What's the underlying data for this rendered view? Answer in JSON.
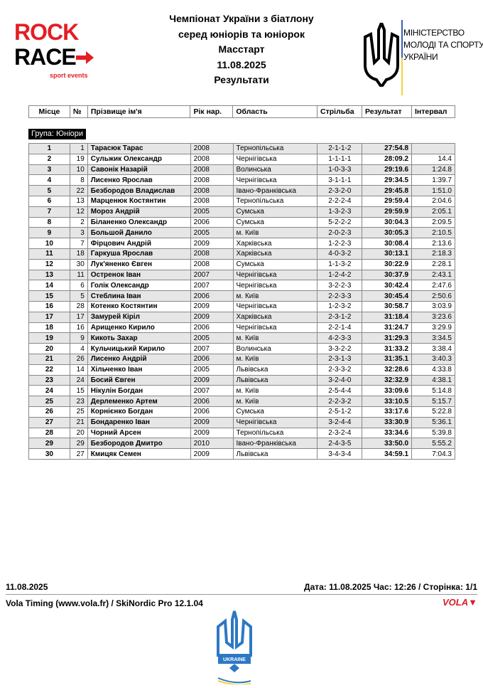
{
  "header": {
    "rock_race_logo": {
      "line1": "ROCK",
      "line2": "RACE",
      "tagline": "sport events"
    },
    "title_lines": [
      "Чемпіонат України з біатлону",
      "серед юніорів та юніорок",
      "Масстарт",
      "11.08.2025",
      "Результати"
    ],
    "ministry_logo": {
      "line1": "МІНІСТЕРСТВО",
      "line2": "МОЛОДІ ТА СПОРТУ",
      "line3": "УКРАЇНИ"
    }
  },
  "table": {
    "columns": [
      "Місце",
      "№",
      "Прізвище ім'я",
      "Рік нар.",
      "Область",
      "Стрільба",
      "Результат",
      "Інтервал"
    ],
    "group_label": "Група: Юніори",
    "rows": [
      [
        "1",
        "1",
        "Тарасюк Тарас",
        "2008",
        "Тернопільська",
        "2-1-1-2",
        "27:54.8",
        ""
      ],
      [
        "2",
        "19",
        "Сульжик Олександр",
        "2008",
        "Чернігівська",
        "1-1-1-1",
        "28:09.2",
        "14.4"
      ],
      [
        "3",
        "10",
        "Савонік Назарій",
        "2008",
        "Волинська",
        "1-0-3-3",
        "29:19.6",
        "1:24.8"
      ],
      [
        "4",
        "8",
        "Лисенко Ярослав",
        "2008",
        "Чернігівська",
        "3-1-1-1",
        "29:34.5",
        "1:39.7"
      ],
      [
        "5",
        "22",
        "Безбородов Владислав",
        "2008",
        "Івано-Франківська",
        "2-3-2-0",
        "29:45.8",
        "1:51.0"
      ],
      [
        "6",
        "13",
        "Марценюк Костянтин",
        "2008",
        "Тернопільська",
        "2-2-2-4",
        "29:59.4",
        "2:04.6"
      ],
      [
        "7",
        "12",
        "Мороз Андрій",
        "2005",
        "Сумська",
        "1-3-2-3",
        "29:59.9",
        "2:05.1"
      ],
      [
        "8",
        "2",
        "Біланенко Олександр",
        "2006",
        "Сумська",
        "5-2-2-2",
        "30:04.3",
        "2:09.5"
      ],
      [
        "9",
        "3",
        "Большой Данило",
        "2005",
        "м. Київ",
        "2-0-2-3",
        "30:05.3",
        "2:10.5"
      ],
      [
        "10",
        "7",
        "Фірцович Андрій",
        "2009",
        "Харківська",
        "1-2-2-3",
        "30:08.4",
        "2:13.6"
      ],
      [
        "11",
        "18",
        "Гаркуша Ярослав",
        "2008",
        "Харківська",
        "4-0-3-2",
        "30:13.1",
        "2:18.3"
      ],
      [
        "12",
        "30",
        "Лук'яненко Євген",
        "2008",
        "Сумська",
        "1-1-3-2",
        "30:22.9",
        "2:28.1"
      ],
      [
        "13",
        "11",
        "Остренок Іван",
        "2007",
        "Чернігівська",
        "1-2-4-2",
        "30:37.9",
        "2:43.1"
      ],
      [
        "14",
        "6",
        "Голік Олександр",
        "2007",
        "Чернігівська",
        "3-2-2-3",
        "30:42.4",
        "2:47.6"
      ],
      [
        "15",
        "5",
        "Стеблина Іван",
        "2006",
        "м. Київ",
        "2-2-3-3",
        "30:45.4",
        "2:50.6"
      ],
      [
        "16",
        "28",
        "Котенко Костянтин",
        "2009",
        "Чернігівська",
        "1-2-3-2",
        "30:58.7",
        "3:03.9"
      ],
      [
        "17",
        "17",
        "Замурей Кіріл",
        "2009",
        "Харківська",
        "2-3-1-2",
        "31:18.4",
        "3:23.6"
      ],
      [
        "18",
        "16",
        "Арищенко Кирило",
        "2006",
        "Чернігівська",
        "2-2-1-4",
        "31:24.7",
        "3:29.9"
      ],
      [
        "19",
        "9",
        "Кикоть Захар",
        "2005",
        "м. Київ",
        "4-2-3-3",
        "31:29.3",
        "3:34.5"
      ],
      [
        "20",
        "4",
        "Кульчицький Кирило",
        "2007",
        "Волинська",
        "3-3-2-2",
        "31:33.2",
        "3:38.4"
      ],
      [
        "21",
        "26",
        "Лисенко Андрій",
        "2006",
        "м. Київ",
        "2-3-1-3",
        "31:35.1",
        "3:40.3"
      ],
      [
        "22",
        "14",
        "Хільченко Іван",
        "2005",
        "Львівська",
        "2-3-3-2",
        "32:28.6",
        "4:33.8"
      ],
      [
        "23",
        "24",
        "Босий Євген",
        "2009",
        "Львівська",
        "3-2-4-0",
        "32:32.9",
        "4:38.1"
      ],
      [
        "24",
        "15",
        "Нікулін Богдан",
        "2007",
        "м. Київ",
        "2-5-4-4",
        "33:09.6",
        "5:14.8"
      ],
      [
        "25",
        "23",
        "Дерлеменко Артем",
        "2006",
        "м. Київ",
        "2-2-3-2",
        "33:10.5",
        "5:15.7"
      ],
      [
        "26",
        "25",
        "Корнієнко Богдан",
        "2006",
        "Сумська",
        "2-5-1-2",
        "33:17.6",
        "5:22.8"
      ],
      [
        "27",
        "21",
        "Бондаренко Іван",
        "2009",
        "Чернігівська",
        "3-2-4-4",
        "33:30.9",
        "5:36.1"
      ],
      [
        "28",
        "20",
        "Чорний Арсен",
        "2009",
        "Тернопільська",
        "2-3-2-4",
        "33:34.6",
        "5:39.8"
      ],
      [
        "29",
        "29",
        "Безбородов Дмитро",
        "2010",
        "Івано-Франківська",
        "2-4-3-5",
        "33:50.0",
        "5:55.2"
      ],
      [
        "30",
        "27",
        "Кмицяк Семен",
        "2009",
        "Львівська",
        "3-4-3-4",
        "34:59.1",
        "7:04.3"
      ]
    ]
  },
  "footer": {
    "date": "11.08.2025",
    "print_info": "Дата: 11.08.2025 Час: 12:26 / Сторінка: 1/1",
    "timing": "Vola Timing (www.vola.fr) / SkiNordic Pro 12.1.04",
    "vola_logo": "VOLA",
    "federation_logo": {
      "name": "UKRAINE",
      "caption": "FEDERATION BIATHLON OF UKRAINE"
    }
  },
  "colors": {
    "rock_red": "#e31e24",
    "vola_red": "#d81e2a",
    "row_shade": "#e6e6e6",
    "ukraine_blue": "#2d78c4",
    "ukraine_yellow": "#f3d23a"
  }
}
